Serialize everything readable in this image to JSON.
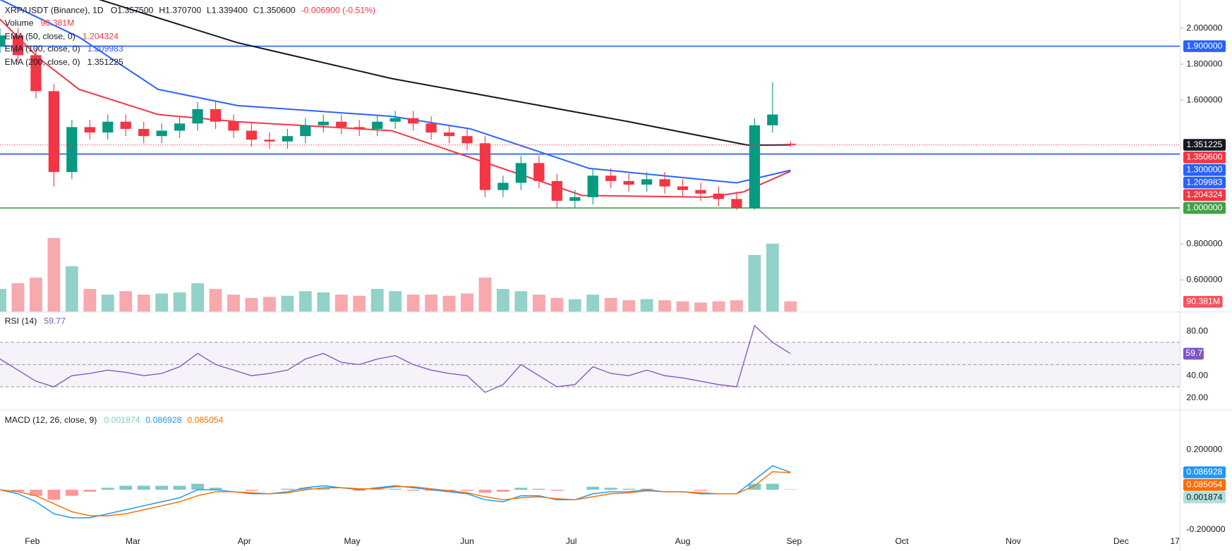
{
  "chart_data": [
    {
      "type": "candlestick",
      "title": "XRP/USDT (Binance), 1D",
      "quote": [
        "O1.357500",
        "H1.370700",
        "L1.339400",
        "C1.350600",
        "-0.006900 (-0.51%)"
      ],
      "x": [
        0,
        5,
        10,
        15,
        20,
        25,
        30,
        35,
        40,
        45,
        50,
        55,
        60,
        65,
        70,
        75,
        80,
        85,
        90,
        95,
        100,
        105,
        110,
        115,
        120,
        125,
        130,
        135,
        140,
        145,
        150,
        155,
        160,
        165,
        170,
        175,
        180,
        185,
        190,
        195,
        200,
        205,
        210,
        215,
        220
      ],
      "open": [
        1.9,
        1.96,
        1.85,
        1.65,
        1.2,
        1.45,
        1.42,
        1.48,
        1.44,
        1.4,
        1.43,
        1.47,
        1.55,
        1.48,
        1.43,
        1.38,
        1.37,
        1.4,
        1.46,
        1.48,
        1.45,
        1.44,
        1.48,
        1.5,
        1.47,
        1.42,
        1.4,
        1.36,
        1.1,
        1.14,
        1.25,
        1.15,
        1.04,
        1.06,
        1.18,
        1.15,
        1.13,
        1.16,
        1.12,
        1.1,
        1.08,
        1.05,
        1.0,
        1.46,
        1.3575
      ],
      "high": [
        2.0,
        2.0,
        1.89,
        1.69,
        1.49,
        1.49,
        1.52,
        1.52,
        1.48,
        1.47,
        1.51,
        1.59,
        1.59,
        1.52,
        1.47,
        1.42,
        1.44,
        1.5,
        1.52,
        1.52,
        1.49,
        1.52,
        1.54,
        1.54,
        1.51,
        1.46,
        1.44,
        1.4,
        1.18,
        1.29,
        1.29,
        1.19,
        1.1,
        1.22,
        1.22,
        1.19,
        1.2,
        1.2,
        1.16,
        1.14,
        1.12,
        1.09,
        1.5,
        1.7,
        1.3707
      ],
      "low": [
        1.86,
        1.81,
        1.61,
        1.12,
        1.16,
        1.38,
        1.38,
        1.4,
        1.36,
        1.36,
        1.39,
        1.43,
        1.44,
        1.39,
        1.34,
        1.33,
        1.33,
        1.36,
        1.42,
        1.41,
        1.4,
        1.4,
        1.44,
        1.43,
        1.38,
        1.36,
        1.32,
        1.06,
        1.06,
        1.1,
        1.11,
        1.0,
        1.0,
        1.02,
        1.11,
        1.09,
        1.09,
        1.08,
        1.06,
        1.04,
        1.01,
        0.99,
        0.99,
        1.42,
        1.3394
      ],
      "close": [
        1.96,
        1.85,
        1.65,
        1.2,
        1.45,
        1.42,
        1.48,
        1.44,
        1.4,
        1.43,
        1.47,
        1.55,
        1.48,
        1.43,
        1.38,
        1.37,
        1.4,
        1.46,
        1.48,
        1.45,
        1.44,
        1.48,
        1.5,
        1.47,
        1.42,
        1.4,
        1.36,
        1.1,
        1.14,
        1.25,
        1.15,
        1.04,
        1.06,
        1.18,
        1.15,
        1.13,
        1.16,
        1.12,
        1.1,
        1.08,
        1.05,
        1.0,
        1.46,
        1.52,
        1.3506
      ],
      "last_close_label": "1.350600",
      "up_color": "#089981",
      "down_color": "#f23645",
      "series": [
        {
          "name": "EMA (50, close, 0)",
          "color": "#f23645",
          "x": [
            0,
            11,
            22,
            44,
            66,
            109,
            131,
            162,
            197,
            207,
            220
          ],
          "values": [
            2.05,
            1.83,
            1.66,
            1.52,
            1.48,
            1.43,
            1.28,
            1.07,
            1.06,
            1.09,
            1.204324
          ]
        },
        {
          "name": "EMA (100, close, 0)",
          "color": "#2962ff",
          "x": [
            0,
            22,
            44,
            66,
            109,
            131,
            164,
            205,
            220
          ],
          "values": [
            2.16,
            1.95,
            1.66,
            1.57,
            1.51,
            1.44,
            1.22,
            1.14,
            1.209983
          ]
        },
        {
          "name": "EMA (200, close, 0)",
          "color": "#131722",
          "x": [
            26,
            66,
            109,
            131,
            175,
            208,
            214,
            220
          ],
          "values": [
            2.17,
            1.92,
            1.72,
            1.64,
            1.48,
            1.35,
            1.35,
            1.351225
          ]
        }
      ],
      "levels": [
        {
          "value": 1.9,
          "label": "1.900000",
          "color": "#2962ff"
        },
        {
          "value": 1.3,
          "label": "1.300000",
          "color": "#2962ff"
        },
        {
          "value": 1.0,
          "label": "1.000000",
          "color": "#43a047"
        }
      ],
      "xlim": [
        0,
        328
      ],
      "ylim": [
        0.4236,
        2.157
      ],
      "xticks": [
        {
          "value": 9,
          "label": "Feb"
        },
        {
          "value": 37,
          "label": "Mar"
        },
        {
          "value": 68,
          "label": "Apr"
        },
        {
          "value": 98,
          "label": "May"
        },
        {
          "value": 130,
          "label": "Jun"
        },
        {
          "value": 159,
          "label": "Jul"
        },
        {
          "value": 190,
          "label": "Aug"
        },
        {
          "value": 221,
          "label": "Sep"
        },
        {
          "value": 251,
          "label": "Oct"
        },
        {
          "value": 282,
          "label": "Nov"
        },
        {
          "value": 312,
          "label": "Dec"
        },
        {
          "value": 327,
          "label": "17"
        }
      ],
      "yticks": [
        {
          "value": 0.6,
          "label": "0.600000"
        },
        {
          "value": 0.8,
          "label": "0.800000"
        },
        {
          "value": 1.6,
          "label": "1.600000"
        },
        {
          "value": 1.8,
          "label": "1.800000"
        },
        {
          "value": 2.0,
          "label": "2.000000"
        }
      ]
    },
    {
      "type": "bar",
      "name": "Volume",
      "values": [
        200,
        250,
        300,
        650,
        400,
        200,
        150,
        180,
        150,
        160,
        170,
        250,
        200,
        150,
        120,
        130,
        140,
        180,
        170,
        150,
        140,
        200,
        180,
        150,
        150,
        140,
        160,
        300,
        200,
        180,
        150,
        120,
        110,
        150,
        120,
        100,
        110,
        100,
        90,
        80,
        90,
        100,
        500,
        600,
        90.381
      ],
      "value_labels": [
        null,
        null,
        null,
        null,
        null,
        null,
        null,
        null,
        null,
        null,
        null,
        null,
        null,
        null,
        null,
        null,
        null,
        null,
        null,
        null,
        null,
        null,
        null,
        null,
        null,
        null,
        null,
        null,
        null,
        null,
        null,
        null,
        null,
        null,
        null,
        null,
        null,
        null,
        null,
        null,
        null,
        null,
        null,
        null,
        "90.381M"
      ],
      "ylim": [
        0,
        2750
      ],
      "up_color": "#92d2c8",
      "down_color": "#f7a9ad",
      "label_color": "#f7525f"
    },
    {
      "type": "line",
      "title": "RSI (14)",
      "color": "#7e57c2",
      "values": [
        55,
        45,
        35,
        30,
        40,
        42,
        45,
        43,
        40,
        42,
        48,
        60,
        50,
        45,
        40,
        42,
        45,
        55,
        60,
        52,
        50,
        55,
        58,
        50,
        45,
        42,
        40,
        25,
        32,
        50,
        40,
        30,
        32,
        48,
        42,
        40,
        45,
        40,
        38,
        35,
        32,
        30,
        85,
        70,
        59.77
      ],
      "bands": [
        70,
        50,
        30
      ],
      "ylim": [
        9.4,
        96.9
      ],
      "yticks": [
        {
          "value": 20,
          "label": "20.00"
        },
        {
          "value": 40,
          "label": "40.00"
        },
        {
          "value": 80,
          "label": "80.00"
        }
      ]
    },
    {
      "type": "macd",
      "title": "MACD (12, 26, close, 9)",
      "histogram": {
        "color": "#26a69a",
        "neg_color": "#ff5252",
        "values": [
          0,
          -0.01,
          -0.03,
          -0.05,
          -0.03,
          -0.01,
          0.01,
          0.02,
          0.02,
          0.02,
          0.02,
          0.03,
          0.01,
          0,
          -0.005,
          0,
          0.005,
          0.01,
          0.01,
          0,
          -0.005,
          0.005,
          0.005,
          -0.005,
          -0.005,
          -0.005,
          -0.005,
          -0.015,
          -0.01,
          0.01,
          0.005,
          -0.005,
          0,
          0.015,
          0.01,
          0.005,
          0.005,
          0,
          0,
          -0.005,
          0,
          0,
          0.03,
          0.03,
          0.001874
        ]
      },
      "macd": {
        "color": "#2196f3",
        "values": [
          0.0,
          -0.02,
          -0.06,
          -0.12,
          -0.14,
          -0.14,
          -0.12,
          -0.1,
          -0.08,
          -0.06,
          -0.04,
          0.0,
          0.0,
          -0.01,
          -0.02,
          -0.02,
          -0.01,
          0.01,
          0.02,
          0.01,
          0.0,
          0.01,
          0.02,
          0.01,
          0.0,
          -0.01,
          -0.02,
          -0.05,
          -0.06,
          -0.03,
          -0.03,
          -0.05,
          -0.05,
          -0.02,
          -0.01,
          -0.01,
          0.0,
          -0.01,
          -0.01,
          -0.02,
          -0.02,
          -0.02,
          0.05,
          0.12,
          0.086928
        ]
      },
      "signal": {
        "color": "#ff6d00",
        "values": [
          0.0,
          -0.01,
          -0.03,
          -0.07,
          -0.11,
          -0.13,
          -0.13,
          -0.12,
          -0.1,
          -0.08,
          -0.06,
          -0.03,
          -0.01,
          -0.01,
          -0.015,
          -0.02,
          -0.015,
          0.0,
          0.01,
          0.01,
          0.005,
          0.005,
          0.015,
          0.015,
          0.005,
          -0.005,
          -0.015,
          -0.035,
          -0.05,
          -0.04,
          -0.035,
          -0.045,
          -0.05,
          -0.035,
          -0.02,
          -0.015,
          -0.005,
          -0.01,
          -0.01,
          -0.015,
          -0.02,
          -0.02,
          0.02,
          0.09,
          0.085054
        ]
      },
      "ylim": [
        -0.306,
        0.396
      ],
      "yticks": [
        {
          "value": -0.2,
          "label": "-0.200000"
        },
        {
          "value": 0.2,
          "label": "0.200000"
        }
      ]
    }
  ]
}
